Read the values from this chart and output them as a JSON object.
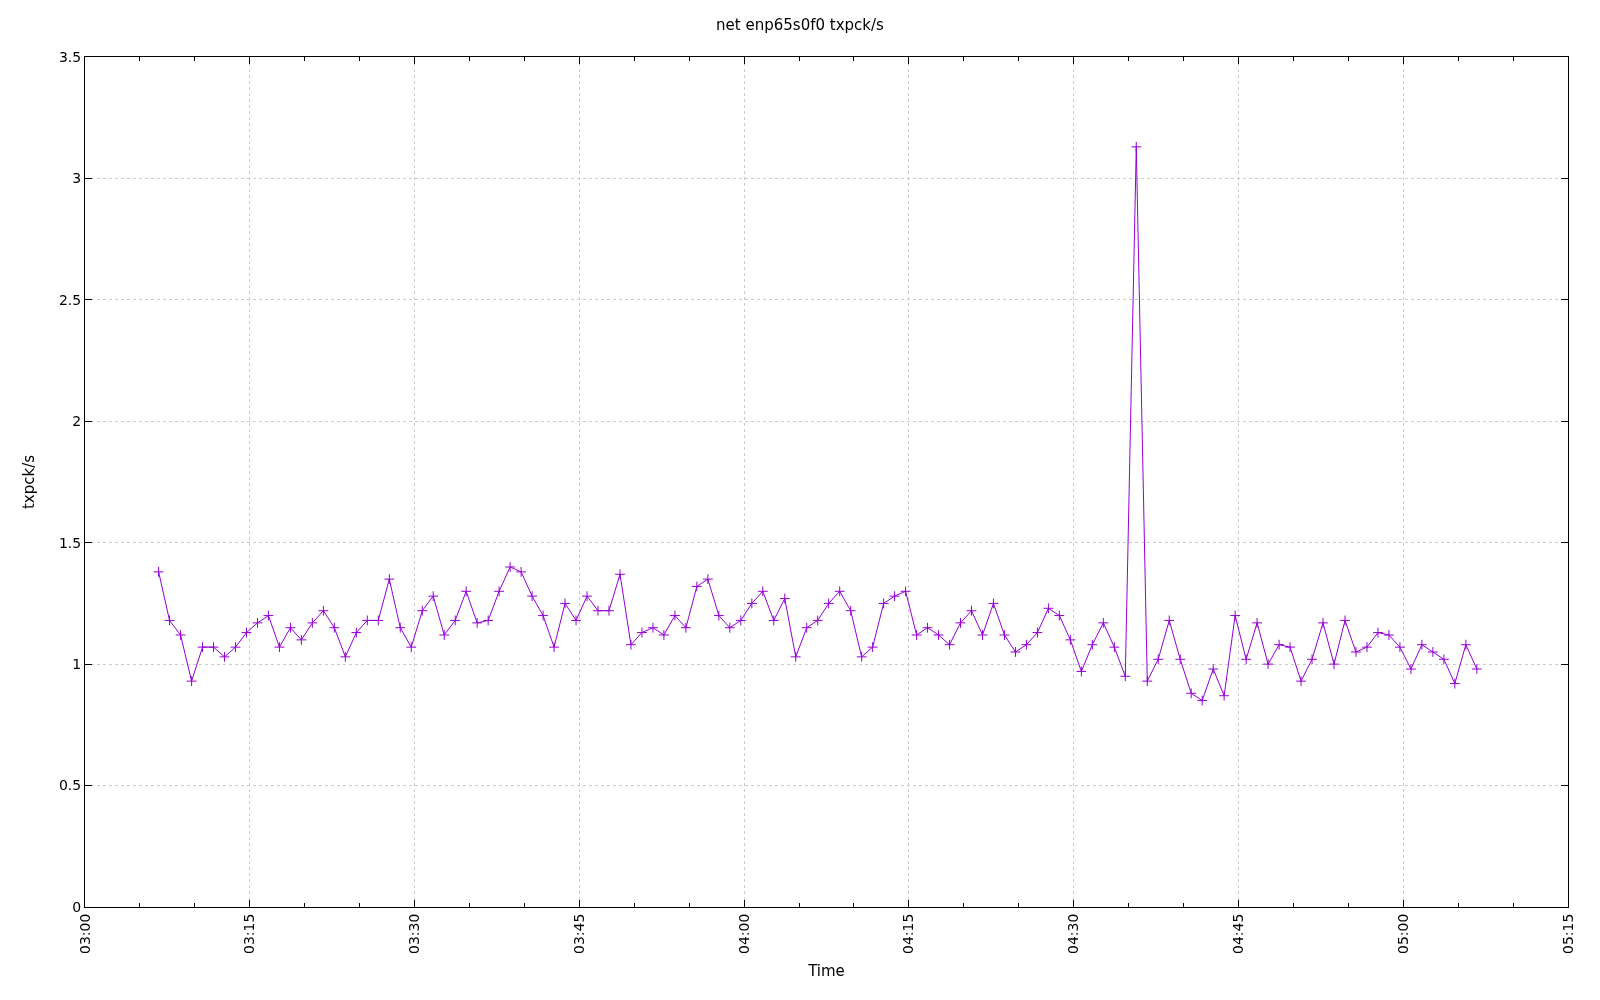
{
  "chart_data": {
    "type": "line",
    "title": "net enp65s0f0 txpck/s",
    "xlabel": "Time",
    "ylabel": "txpck/s",
    "x": [
      3.1117,
      3.1283,
      3.145,
      3.1617,
      3.1783,
      3.195,
      3.2117,
      3.2283,
      3.245,
      3.2617,
      3.2783,
      3.295,
      3.3117,
      3.3283,
      3.345,
      3.3617,
      3.3783,
      3.395,
      3.4117,
      3.4283,
      3.445,
      3.4617,
      3.4783,
      3.495,
      3.5117,
      3.5283,
      3.545,
      3.5617,
      3.5783,
      3.595,
      3.6117,
      3.6283,
      3.645,
      3.6617,
      3.6783,
      3.695,
      3.7117,
      3.7283,
      3.745,
      3.7617,
      3.7783,
      3.795,
      3.8117,
      3.8283,
      3.845,
      3.8617,
      3.8783,
      3.895,
      3.9117,
      3.9283,
      3.945,
      3.9617,
      3.9783,
      3.995,
      4.0117,
      4.0283,
      4.045,
      4.0617,
      4.0783,
      4.095,
      4.1117,
      4.1283,
      4.145,
      4.1617,
      4.1783,
      4.195,
      4.2117,
      4.2283,
      4.245,
      4.2617,
      4.2783,
      4.295,
      4.3117,
      4.3283,
      4.345,
      4.3617,
      4.3783,
      4.395,
      4.4117,
      4.4283,
      4.445,
      4.4617,
      4.4783,
      4.495,
      4.5117,
      4.5283,
      4.545,
      4.5617,
      4.5783,
      4.595,
      4.6117,
      4.6283,
      4.645,
      4.6617,
      4.6783,
      4.695,
      4.7117,
      4.7283,
      4.745,
      4.7617,
      4.7783,
      4.795,
      4.8117,
      4.8283,
      4.845,
      4.8617,
      4.8783,
      4.895,
      4.9117,
      4.9283,
      4.945,
      4.9617,
      4.9783,
      4.995,
      5.0117,
      5.0283,
      5.045,
      5.0617,
      5.0783,
      5.095,
      5.1117
    ],
    "series": [
      {
        "color": "#9400d3",
        "values": [
          1.38,
          1.18,
          1.12,
          0.93,
          1.07,
          1.07,
          1.03,
          1.07,
          1.13,
          1.17,
          1.2,
          1.07,
          1.15,
          1.1,
          1.17,
          1.22,
          1.15,
          1.03,
          1.13,
          1.18,
          1.18,
          1.35,
          1.15,
          1.07,
          1.22,
          1.28,
          1.12,
          1.18,
          1.3,
          1.17,
          1.18,
          1.3,
          1.4,
          1.38,
          1.28,
          1.2,
          1.07,
          1.25,
          1.18,
          1.28,
          1.22,
          1.22,
          1.37,
          1.08,
          1.13,
          1.15,
          1.12,
          1.2,
          1.15,
          1.32,
          1.35,
          1.2,
          1.15,
          1.18,
          1.25,
          1.3,
          1.18,
          1.27,
          1.03,
          1.15,
          1.18,
          1.25,
          1.3,
          1.22,
          1.03,
          1.07,
          1.25,
          1.28,
          1.3,
          1.12,
          1.15,
          1.12,
          1.08,
          1.17,
          1.22,
          1.12,
          1.25,
          1.12,
          1.05,
          1.08,
          1.13,
          1.23,
          1.2,
          1.1,
          0.97,
          1.08,
          1.17,
          1.07,
          0.95,
          3.13,
          0.93,
          1.02,
          1.18,
          1.02,
          0.88,
          0.85,
          0.98,
          0.87,
          1.2,
          1.02,
          1.17,
          1,
          1.08,
          1.07,
          0.93,
          1.02,
          1.17,
          1,
          1.18,
          1.05,
          1.07,
          1.13,
          1.12,
          1.07,
          0.98,
          1.08,
          1.05,
          1.02,
          0.92,
          1.08,
          0.98
        ]
      }
    ],
    "xlim": [
      3,
      5.25
    ],
    "xticks": [
      {
        "value": 3,
        "label": "03:00"
      },
      {
        "value": 3.25,
        "label": "03:15"
      },
      {
        "value": 3.5,
        "label": "03:30"
      },
      {
        "value": 3.75,
        "label": "03:45"
      },
      {
        "value": 4,
        "label": "04:00"
      },
      {
        "value": 4.25,
        "label": "04:15"
      },
      {
        "value": 4.5,
        "label": "04:30"
      },
      {
        "value": 4.75,
        "label": "04:45"
      },
      {
        "value": 5,
        "label": "05:00"
      },
      {
        "value": 5.25,
        "label": "05:15"
      }
    ],
    "ylim": [
      0,
      3.5
    ],
    "yticks": [
      0,
      0.5,
      1,
      1.5,
      2,
      2.5,
      3,
      3.5
    ],
    "grid": true,
    "marker": "cross",
    "line_style": "solid"
  }
}
